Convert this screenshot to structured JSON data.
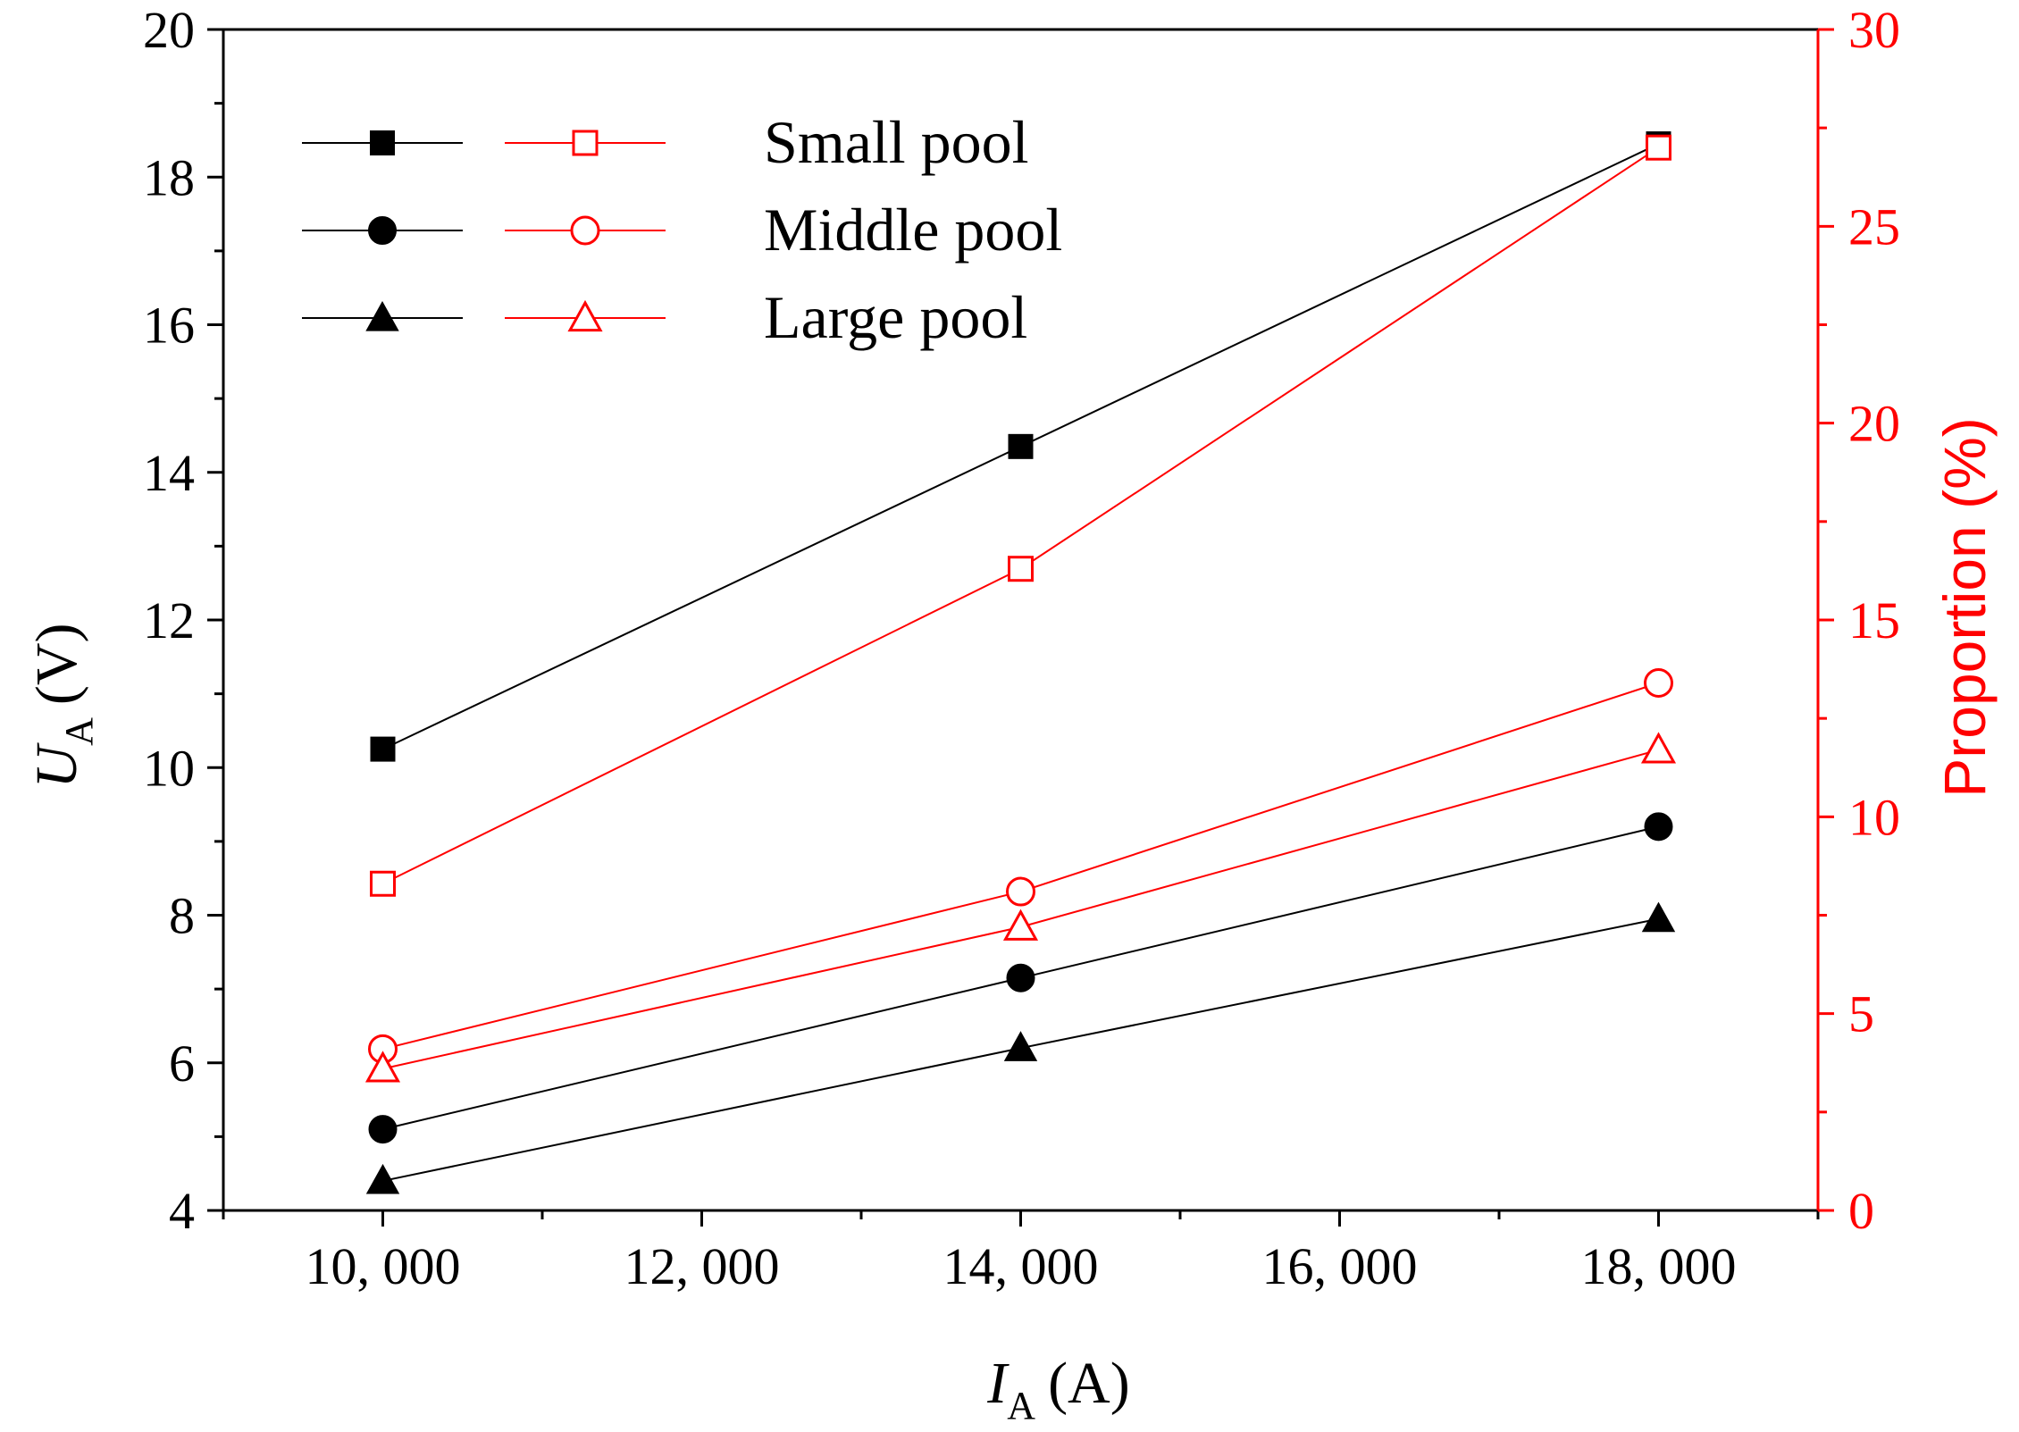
{
  "chart_data": {
    "type": "line",
    "xlabel_main": "I",
    "xlabel_sub": "A",
    "xlabel_unit": "(A)",
    "ylabel_main": "U",
    "ylabel_sub": "A",
    "ylabel_unit": "(V)",
    "y2label": "Proportion (%)",
    "xlim": [
      9000,
      19000
    ],
    "ylim": [
      4,
      20
    ],
    "y2lim": [
      0,
      30
    ],
    "x_ticks": [
      10000,
      12000,
      14000,
      16000,
      18000
    ],
    "x_tick_labels": [
      "10, 000",
      "12, 000",
      "14, 000",
      "16, 000",
      "18, 000"
    ],
    "y_ticks": [
      4,
      6,
      8,
      10,
      12,
      14,
      16,
      18,
      20
    ],
    "y_tick_labels": [
      "4",
      "6",
      "8",
      "10",
      "12",
      "14",
      "16",
      "18",
      "20"
    ],
    "y2_ticks": [
      0,
      5,
      10,
      15,
      20,
      25,
      30
    ],
    "y2_tick_labels": [
      "0",
      "5",
      "10",
      "15",
      "20",
      "25",
      "30"
    ],
    "x": [
      10000,
      14000,
      18000
    ],
    "colors": {
      "left_axis": "#000000",
      "right_axis": "#ff0000"
    },
    "series": [
      {
        "name": "Small pool",
        "axis": "left",
        "marker": "square",
        "filled": true,
        "color": "#000000",
        "values": [
          10.25,
          14.35,
          18.45
        ]
      },
      {
        "name": "Middle pool",
        "axis": "left",
        "marker": "circle",
        "filled": true,
        "color": "#000000",
        "values": [
          5.1,
          7.15,
          9.2
        ]
      },
      {
        "name": "Large pool",
        "axis": "left",
        "marker": "triangle",
        "filled": true,
        "color": "#000000",
        "values": [
          4.4,
          6.2,
          7.95
        ]
      },
      {
        "name": "Small pool",
        "axis": "right",
        "marker": "square",
        "filled": false,
        "color": "#ff0000",
        "values": [
          8.3,
          16.3,
          27.0
        ]
      },
      {
        "name": "Middle pool",
        "axis": "right",
        "marker": "circle",
        "filled": false,
        "color": "#ff0000",
        "values": [
          4.1,
          8.1,
          13.4
        ]
      },
      {
        "name": "Large pool",
        "axis": "right",
        "marker": "triangle",
        "filled": false,
        "color": "#ff0000",
        "values": [
          3.6,
          7.2,
          11.7
        ]
      }
    ],
    "legend": {
      "position": "top-left",
      "entries": [
        "Small pool",
        "Middle pool",
        "Large pool"
      ]
    }
  }
}
